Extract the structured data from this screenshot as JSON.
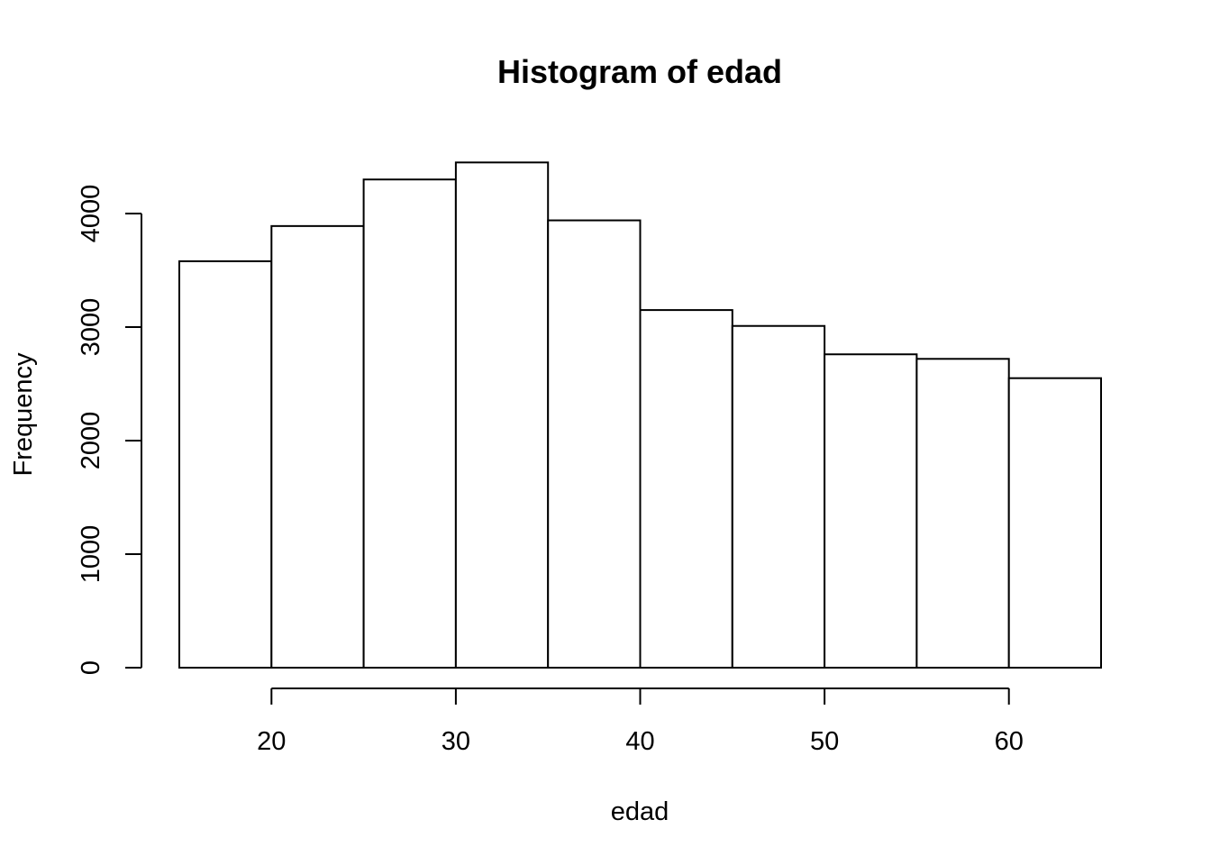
{
  "chart_data": {
    "type": "bar",
    "title": "Histogram of edad",
    "xlabel": "edad",
    "ylabel": "Frequency",
    "bins": [
      {
        "from": 15,
        "to": 20,
        "value": 3580
      },
      {
        "from": 20,
        "to": 25,
        "value": 3890
      },
      {
        "from": 25,
        "to": 30,
        "value": 4300
      },
      {
        "from": 30,
        "to": 35,
        "value": 4450
      },
      {
        "from": 35,
        "to": 40,
        "value": 3940
      },
      {
        "from": 40,
        "to": 45,
        "value": 3150
      },
      {
        "from": 45,
        "to": 50,
        "value": 3010
      },
      {
        "from": 50,
        "to": 55,
        "value": 2760
      },
      {
        "from": 55,
        "to": 60,
        "value": 2720
      },
      {
        "from": 60,
        "to": 65,
        "value": 2550
      }
    ],
    "xticks": [
      "20",
      "30",
      "40",
      "50",
      "60"
    ],
    "yticks": [
      "0",
      "1000",
      "2000",
      "3000",
      "4000"
    ],
    "xlim": [
      15,
      65
    ],
    "ylim": [
      0,
      4000
    ],
    "grid": false,
    "legend": "none"
  }
}
